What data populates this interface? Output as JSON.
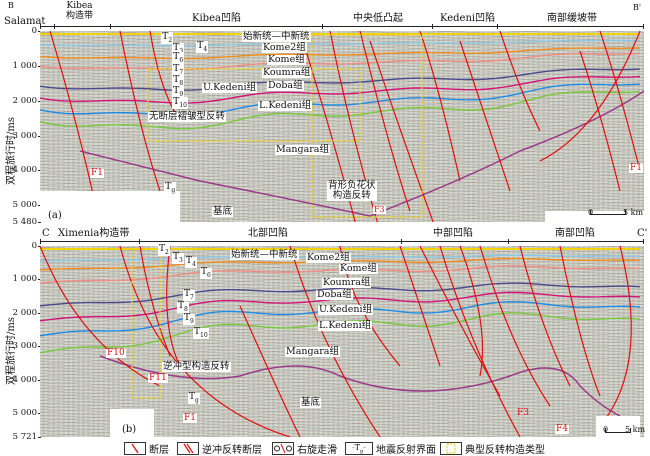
{
  "panel_a": {
    "left_end": "B",
    "right_end": "B'",
    "structure_left": "Kibea\n构造带",
    "salamat": "Salamat",
    "regions": [
      "Kibea凹陷",
      "中央低凸起",
      "Kedeni凹陷",
      "南部缓坡带"
    ],
    "y_ticks": [
      "0",
      "1 000",
      "2 000",
      "3 000",
      "4 000",
      "5 000",
      "5 480"
    ],
    "y_title": "双程旅行时/ms",
    "horizons": [
      "T2",
      "T3",
      "T4",
      "T6",
      "T7",
      "T8",
      "T9",
      "T10"
    ],
    "horizon_labels": {
      "T2": "T",
      "T3": "T",
      "T4": "T",
      "T6": "T",
      "T7": "T",
      "T8": "T",
      "T9": "T",
      "T10": "T",
      "Tg": "T"
    },
    "formations": [
      "始新统—中新统",
      "Kome2组",
      "Kome组",
      "Koumra组",
      "Doba组",
      "U.Kedeni组",
      "L.Kedeni组",
      "Mangara组",
      "基底"
    ],
    "annotations": [
      "无断层褶皱型反转",
      "背形负花状\n构造反转"
    ],
    "faults": [
      "F1",
      "F3"
    ],
    "panel_label": "(a)",
    "scale": {
      "zero": "0",
      "len": "5 km"
    }
  },
  "panel_b": {
    "left_end": "C",
    "right_end": "C'",
    "structure_left": "Ximenia构造带",
    "regions": [
      "北部凹陷",
      "中部凹陷",
      "南部凹陷"
    ],
    "y_ticks": [
      "0",
      "1 000",
      "2 000",
      "3 000",
      "4 000",
      "5 000",
      "5 721"
    ],
    "y_title": "双程旅行时/ms",
    "formations": [
      "始新统—中新统",
      "Kome2组",
      "Kome组",
      "Koumra组",
      "Doba组",
      "U.Kedeni组",
      "L.Kedeni组",
      "Mangara组",
      "基底"
    ],
    "annotations": [
      "逆冲型构造反转"
    ],
    "faults": [
      "F10",
      "F11",
      "F1",
      "F3",
      "F4"
    ],
    "panel_label": "(b)",
    "scale": {
      "zero": "0",
      "len": "5 km"
    }
  },
  "legend": [
    "断层",
    "逆冲反转断层",
    "右旋走滑",
    "地震反射界面",
    "典型反转构造类型"
  ],
  "legend_tg": "T",
  "colors": {
    "fault": "#e01010",
    "T2": "#f2d20a",
    "T3": "#8cc8e6",
    "T4": "#f08c1e",
    "T6": "#f08c82",
    "T7": "#4a4a8c",
    "T8": "#d21478",
    "T9": "#1e8ce6",
    "T10": "#78c83c",
    "Tg": "#9a3a8a",
    "box": "#f2d20a"
  }
}
